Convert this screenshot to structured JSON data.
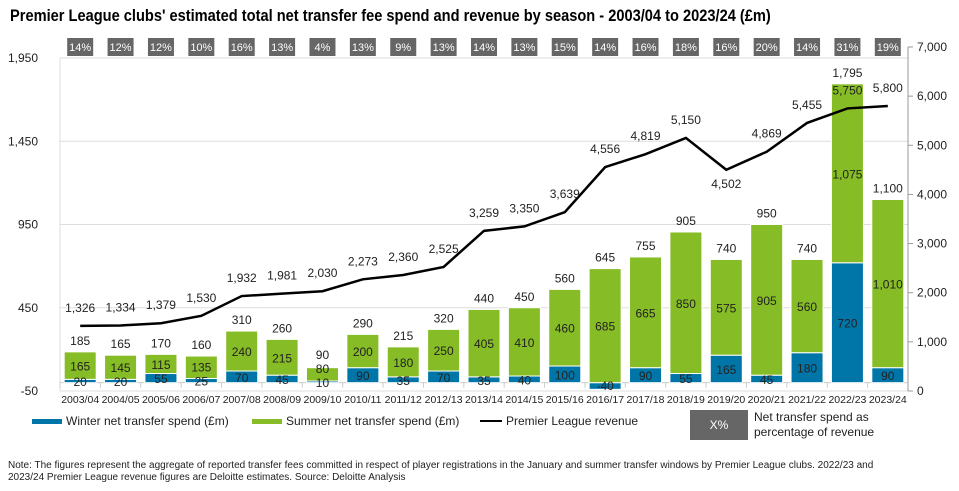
{
  "chart_data": {
    "type": "bar",
    "title": "Premier League clubs' estimated total net transfer fee spend and revenue by season - 2003/04 to 2023/24 (£m)",
    "categories": [
      "2003/04",
      "2004/05",
      "2005/06",
      "2006/07",
      "2007/08",
      "2008/09",
      "2009/10",
      "2010/11",
      "2011/12",
      "2012/13",
      "2013/14",
      "2014/15",
      "2015/16",
      "2016/17",
      "2017/18",
      "2018/19",
      "2019/20",
      "2020/21",
      "2021/22",
      "2022/23",
      "2023/24"
    ],
    "series": [
      {
        "name": "Winter net transfer spend (£m)",
        "type": "stacked-bar",
        "axis": "left",
        "color": "#0075a8",
        "values": [
          20,
          20,
          55,
          25,
          70,
          45,
          10,
          90,
          35,
          70,
          35,
          40,
          100,
          -40,
          90,
          55,
          165,
          45,
          180,
          720,
          90
        ]
      },
      {
        "name": "Summer net transfer spend (£m)",
        "type": "stacked-bar",
        "axis": "left",
        "color": "#86bc25",
        "values": [
          165,
          145,
          115,
          135,
          240,
          215,
          80,
          200,
          180,
          250,
          405,
          410,
          460,
          685,
          665,
          850,
          575,
          905,
          560,
          1075,
          1010
        ]
      },
      {
        "name": "Premier League revenue",
        "type": "line",
        "axis": "right",
        "color": "#000000",
        "values": [
          1326,
          1334,
          1379,
          1530,
          1932,
          1981,
          2030,
          2273,
          2360,
          2525,
          3259,
          3350,
          3639,
          4556,
          4819,
          5150,
          4502,
          4869,
          5455,
          5750,
          5800
        ]
      }
    ],
    "totals": [
      185,
      165,
      170,
      160,
      310,
      260,
      90,
      290,
      215,
      320,
      440,
      450,
      560,
      645,
      755,
      905,
      740,
      950,
      740,
      1795,
      1100
    ],
    "percent_of_revenue": [
      "14%",
      "12%",
      "12%",
      "10%",
      "16%",
      "13%",
      "4%",
      "13%",
      "9%",
      "13%",
      "14%",
      "13%",
      "15%",
      "14%",
      "16%",
      "18%",
      "16%",
      "20%",
      "14%",
      "31%",
      "19%"
    ],
    "left_axis": {
      "ylim": [
        -50,
        1950
      ],
      "ticks": [
        "-50",
        "450",
        "950",
        "1,450",
        "1,950"
      ]
    },
    "right_axis": {
      "ylim": [
        0,
        7000
      ],
      "ticks": [
        "0",
        "1,000",
        "2,000",
        "3,000",
        "4,000",
        "5,000",
        "6,000",
        "7,000"
      ]
    },
    "grid": true,
    "legend_position": "bottom",
    "legend": {
      "winter": "Winter net transfer spend (£m)",
      "summer": "Summer net transfer spend (£m)",
      "revenue": "Premier League revenue",
      "pct_box": "X%",
      "pct_text": "Net transfer spend as percentage of revenue"
    },
    "note": "Note: The figures represent the aggregate of reported transfer fees committed in respect of player registrations in the January and summer transfer windows by Premier League clubs. 2022/23 and 2023/24 Premier League revenue figures are Deloitte estimates. Source: Deloitte Analysis"
  }
}
